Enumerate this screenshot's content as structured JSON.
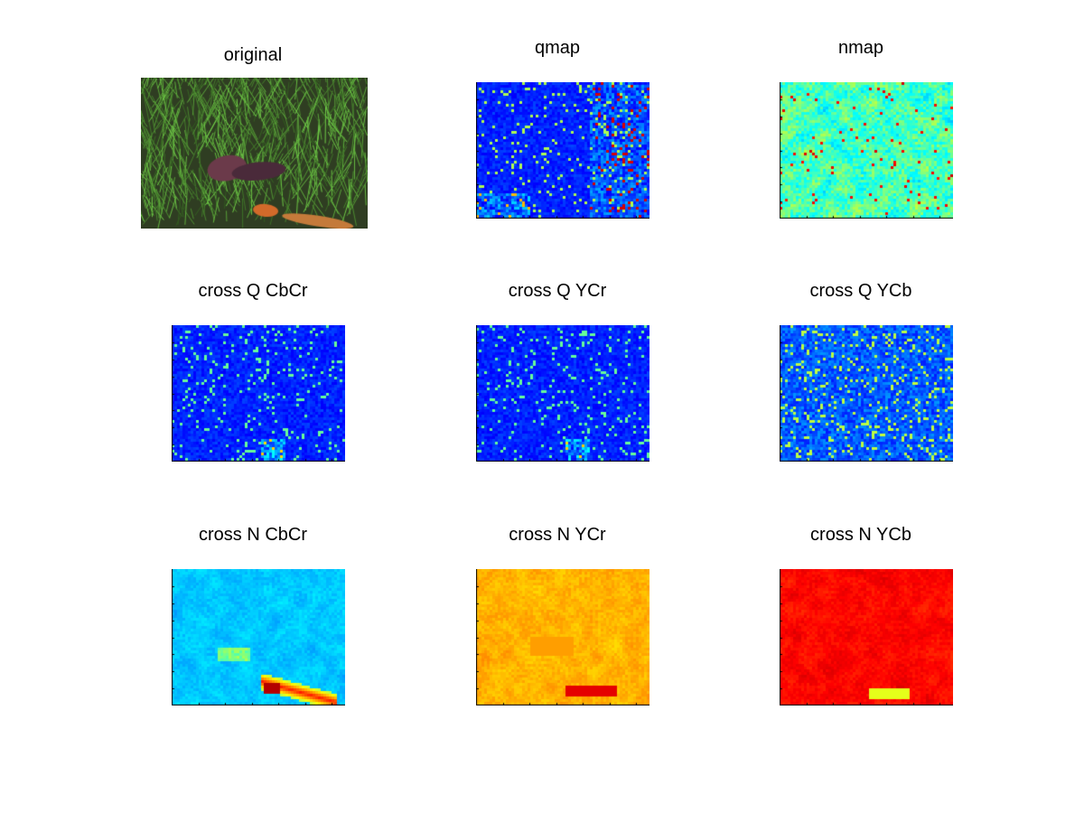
{
  "figure": {
    "panels": [
      {
        "id": "original",
        "title": "original",
        "kind": "photo"
      },
      {
        "id": "qmap",
        "title": "qmap",
        "kind": "heatmap",
        "palette": "jet",
        "tone": "low-sparse-rightband"
      },
      {
        "id": "nmap",
        "title": "nmap",
        "kind": "heatmap",
        "palette": "jet",
        "tone": "mid-texture"
      },
      {
        "id": "cross_q_cbcr",
        "title": "cross Q CbCr",
        "kind": "heatmap",
        "palette": "jet",
        "tone": "low-sparse"
      },
      {
        "id": "cross_q_ycr",
        "title": "cross Q YCr",
        "kind": "heatmap",
        "palette": "jet",
        "tone": "low-sparse"
      },
      {
        "id": "cross_q_ycb",
        "title": "cross Q YCb",
        "kind": "heatmap",
        "palette": "jet",
        "tone": "low-mid-sparse"
      },
      {
        "id": "cross_n_cbcr",
        "title": "cross N CbCr",
        "kind": "heatmap",
        "palette": "jet",
        "tone": "cyan-lizard"
      },
      {
        "id": "cross_n_ycr",
        "title": "cross N YCr",
        "kind": "heatmap",
        "palette": "jet",
        "tone": "yellow"
      },
      {
        "id": "cross_n_ycb",
        "title": "cross N YCb",
        "kind": "heatmap",
        "palette": "jet",
        "tone": "red"
      }
    ]
  }
}
